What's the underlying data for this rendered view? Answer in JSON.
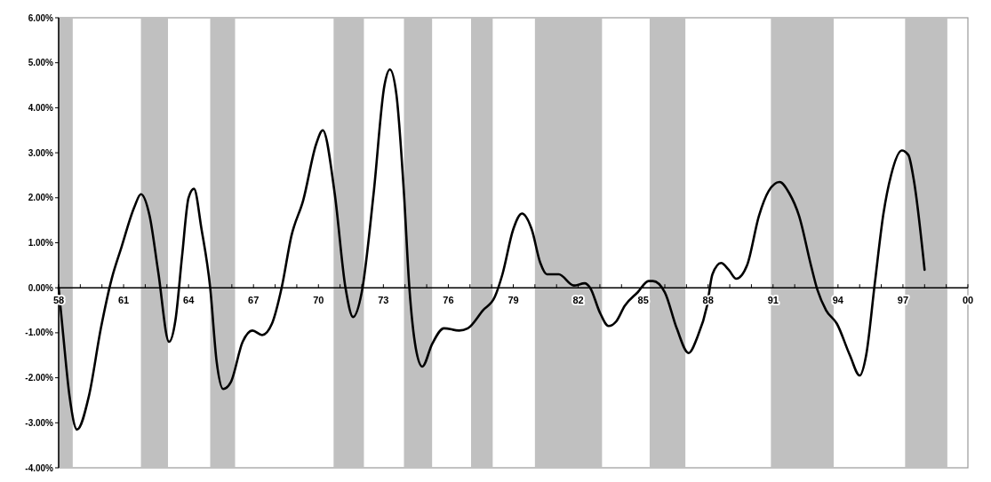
{
  "chart_data": {
    "type": "line",
    "x": [
      1958.0,
      1958.2,
      1958.5,
      1958.85,
      1959.4,
      1959.95,
      1960.45,
      1960.9,
      1961.5,
      1961.8,
      1962.2,
      1962.6,
      1963.1,
      1963.4,
      1963.7,
      1964.0,
      1964.25,
      1964.6,
      1965.0,
      1965.3,
      1965.6,
      1965.95,
      1966.5,
      1966.95,
      1967.4,
      1967.85,
      1968.3,
      1968.75,
      1969.3,
      1969.9,
      1970.2,
      1970.75,
      1971.25,
      1971.6,
      1972.0,
      1972.55,
      1973.05,
      1973.3,
      1973.6,
      1973.95,
      1974.2,
      1974.5,
      1974.8,
      1975.25,
      1975.8,
      1976.5,
      1976.9,
      1977.6,
      1978.15,
      1978.5,
      1979.0,
      1979.4,
      1979.85,
      1980.25,
      1980.55,
      1981.1,
      1981.8,
      1982.3,
      1982.55,
      1983.0,
      1983.4,
      1983.75,
      1984.15,
      1984.75,
      1985.25,
      1985.45,
      1986.0,
      1986.55,
      1987.1,
      1987.5,
      1987.95,
      1988.2,
      1988.6,
      1988.95,
      1989.3,
      1989.8,
      1990.35,
      1990.8,
      1991.3,
      1991.75,
      1992.2,
      1992.75,
      1993.05,
      1993.45,
      1993.95,
      1994.55,
      1995.0,
      1995.3,
      1995.7,
      1996.1,
      1996.45,
      1996.95,
      1997.25,
      1997.5,
      1998.0
    ],
    "series": [
      {
        "color": "#000000",
        "values": [
          0.0,
          -1.0,
          -2.4,
          -3.15,
          -2.4,
          -0.9,
          0.2,
          0.9,
          1.8,
          2.08,
          1.6,
          0.35,
          -1.2,
          -0.7,
          0.7,
          2.0,
          2.2,
          1.3,
          0.0,
          -1.65,
          -2.25,
          -2.1,
          -1.2,
          -0.95,
          -1.05,
          -0.8,
          0.0,
          1.15,
          1.95,
          3.2,
          3.5,
          2.1,
          0.0,
          -0.65,
          -0.1,
          2.1,
          4.5,
          4.85,
          4.3,
          2.1,
          0.0,
          -1.35,
          -1.75,
          -1.25,
          -0.9,
          -0.95,
          -0.9,
          -0.5,
          -0.2,
          0.3,
          1.3,
          1.65,
          1.3,
          0.55,
          0.3,
          0.3,
          0.05,
          0.1,
          0.0,
          -0.55,
          -0.85,
          -0.75,
          -0.4,
          -0.1,
          0.15,
          0.15,
          -0.1,
          -0.9,
          -1.45,
          -1.1,
          -0.4,
          0.3,
          0.55,
          0.4,
          0.2,
          0.5,
          1.6,
          2.15,
          2.35,
          2.1,
          1.6,
          0.5,
          -0.05,
          -0.5,
          -0.8,
          -1.5,
          -1.95,
          -1.5,
          0.1,
          1.65,
          2.5,
          3.05,
          2.95,
          2.4,
          0.4
        ]
      }
    ],
    "xlim": [
      1958,
      2000
    ],
    "xticks": [
      {
        "value": 1958,
        "label": "58"
      },
      {
        "value": 1959,
        "label": null
      },
      {
        "value": 1960,
        "label": null
      },
      {
        "value": 1961,
        "label": "61"
      },
      {
        "value": 1962,
        "label": null
      },
      {
        "value": 1963,
        "label": null
      },
      {
        "value": 1964,
        "label": "64"
      },
      {
        "value": 1965,
        "label": null
      },
      {
        "value": 1966,
        "label": null
      },
      {
        "value": 1967,
        "label": "67"
      },
      {
        "value": 1968,
        "label": null
      },
      {
        "value": 1969,
        "label": null
      },
      {
        "value": 1970,
        "label": "70"
      },
      {
        "value": 1971,
        "label": null
      },
      {
        "value": 1972,
        "label": null
      },
      {
        "value": 1973,
        "label": "73"
      },
      {
        "value": 1974,
        "label": null
      },
      {
        "value": 1975,
        "label": null
      },
      {
        "value": 1976,
        "label": "76"
      },
      {
        "value": 1977,
        "label": null
      },
      {
        "value": 1978,
        "label": null
      },
      {
        "value": 1979,
        "label": "79"
      },
      {
        "value": 1980,
        "label": null
      },
      {
        "value": 1981,
        "label": null
      },
      {
        "value": 1982,
        "label": "82"
      },
      {
        "value": 1983,
        "label": null
      },
      {
        "value": 1984,
        "label": null
      },
      {
        "value": 1985,
        "label": "85"
      },
      {
        "value": 1986,
        "label": null
      },
      {
        "value": 1987,
        "label": null
      },
      {
        "value": 1988,
        "label": "88"
      },
      {
        "value": 1989,
        "label": null
      },
      {
        "value": 1990,
        "label": null
      },
      {
        "value": 1991,
        "label": "91"
      },
      {
        "value": 1992,
        "label": null
      },
      {
        "value": 1993,
        "label": null
      },
      {
        "value": 1994,
        "label": "94"
      },
      {
        "value": 1995,
        "label": null
      },
      {
        "value": 1996,
        "label": null
      },
      {
        "value": 1997,
        "label": "97"
      },
      {
        "value": 1998,
        "label": null
      },
      {
        "value": 1999,
        "label": null
      },
      {
        "value": 2000,
        "label": "00"
      }
    ],
    "ylim": [
      -4,
      6
    ],
    "yticks": [
      {
        "value": -4,
        "label": "-4.00%"
      },
      {
        "value": -3,
        "label": "-3.00%"
      },
      {
        "value": -2,
        "label": "-2.00%"
      },
      {
        "value": -1,
        "label": "-1.00%"
      },
      {
        "value": 0,
        "label": "0.00%"
      },
      {
        "value": 1,
        "label": "1.00%"
      },
      {
        "value": 2,
        "label": "2.00%"
      },
      {
        "value": 3,
        "label": "3.00%"
      },
      {
        "value": 4,
        "label": "4.00%"
      },
      {
        "value": 5,
        "label": "5.00%"
      },
      {
        "value": 6,
        "label": "6.00%"
      }
    ],
    "bands": [
      {
        "axis": "x",
        "from": 1958.0,
        "to": 1958.65,
        "color": "#c0c0c0"
      },
      {
        "axis": "x",
        "from": 1961.8,
        "to": 1963.05,
        "color": "#c0c0c0"
      },
      {
        "axis": "x",
        "from": 1965.0,
        "to": 1966.15,
        "color": "#c0c0c0"
      },
      {
        "axis": "x",
        "from": 1970.7,
        "to": 1972.1,
        "color": "#c0c0c0"
      },
      {
        "axis": "x",
        "from": 1973.95,
        "to": 1975.25,
        "color": "#c0c0c0"
      },
      {
        "axis": "x",
        "from": 1977.05,
        "to": 1978.05,
        "color": "#c0c0c0"
      },
      {
        "axis": "x",
        "from": 1980.0,
        "to": 1983.1,
        "color": "#c0c0c0"
      },
      {
        "axis": "x",
        "from": 1985.3,
        "to": 1986.95,
        "color": "#c0c0c0"
      },
      {
        "axis": "x",
        "from": 1990.9,
        "to": 1993.8,
        "color": "#c0c0c0"
      },
      {
        "axis": "x",
        "from": 1997.1,
        "to": 1999.05,
        "color": "#c0c0c0"
      }
    ],
    "grid": false,
    "marker": "none",
    "line_style": "solid"
  }
}
